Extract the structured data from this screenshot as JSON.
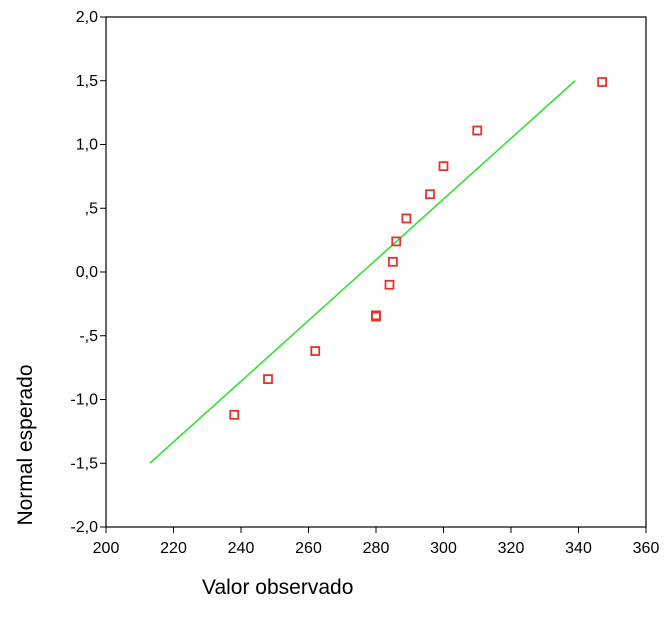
{
  "chart_data": {
    "type": "scatter",
    "title": "",
    "xlabel": "Valor observado",
    "ylabel": "Normal esperado",
    "xlim": [
      200,
      360
    ],
    "ylim": [
      -2.0,
      2.0
    ],
    "x_ticks": [
      200,
      220,
      240,
      260,
      280,
      300,
      320,
      340,
      360
    ],
    "x_tick_labels": [
      "200",
      "220",
      "240",
      "260",
      "280",
      "300",
      "320",
      "340",
      "360"
    ],
    "y_ticks": [
      2.0,
      1.5,
      1.0,
      0.5,
      0.0,
      -0.5,
      -1.0,
      -1.5,
      -2.0
    ],
    "y_tick_labels": [
      "2,0",
      "1,5",
      "1,0",
      ",5",
      "0,0",
      "-,5",
      "-1,0",
      "-1,5",
      "-2,0"
    ],
    "grid": false,
    "legend": "none",
    "series": [
      {
        "kind": "points",
        "marker": "square",
        "color": "#e8312e",
        "points": [
          {
            "x": 238,
            "y": -1.12
          },
          {
            "x": 248,
            "y": -0.84
          },
          {
            "x": 262,
            "y": -0.62
          },
          {
            "x": 280,
            "y": -0.34
          },
          {
            "x": 280,
            "y": -0.35
          },
          {
            "x": 284,
            "y": -0.1
          },
          {
            "x": 285,
            "y": 0.08
          },
          {
            "x": 286,
            "y": 0.24
          },
          {
            "x": 289,
            "y": 0.42
          },
          {
            "x": 296,
            "y": 0.61
          },
          {
            "x": 300,
            "y": 0.83
          },
          {
            "x": 310,
            "y": 1.11
          },
          {
            "x": 347,
            "y": 1.49
          }
        ]
      },
      {
        "kind": "line",
        "color": "#33e033",
        "points": [
          {
            "x": 213,
            "y": -1.5
          },
          {
            "x": 339,
            "y": 1.5
          }
        ]
      }
    ]
  }
}
